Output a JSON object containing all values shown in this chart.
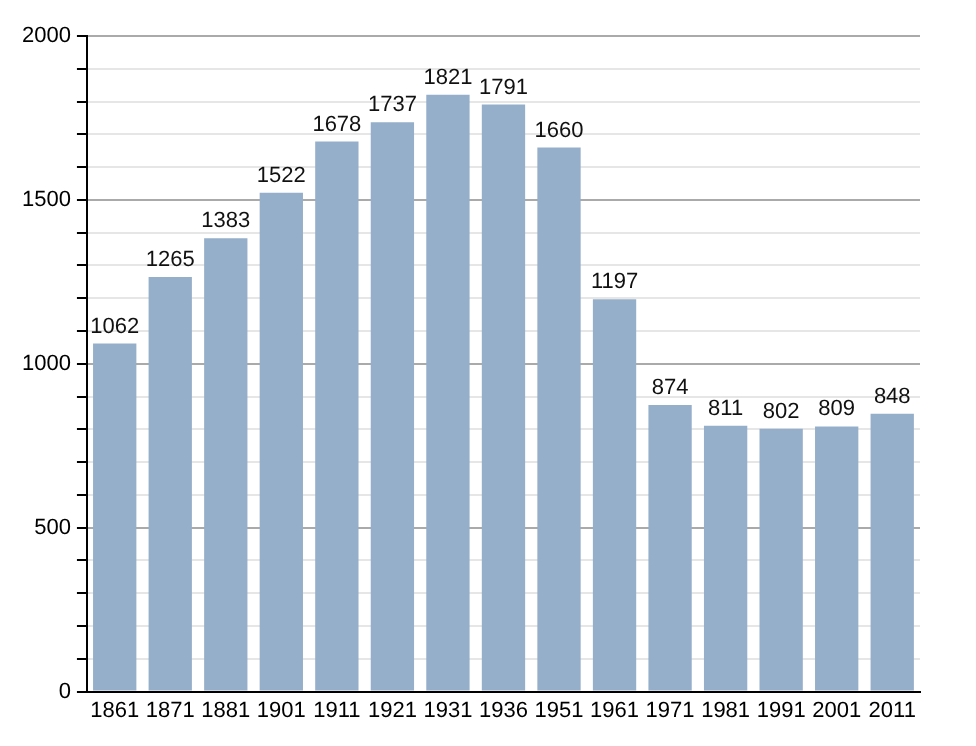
{
  "chart_data": {
    "type": "bar",
    "categories": [
      "1861",
      "1871",
      "1881",
      "1901",
      "1911",
      "1921",
      "1931",
      "1936",
      "1951",
      "1961",
      "1971",
      "1981",
      "1991",
      "2001",
      "2011"
    ],
    "values": [
      1062,
      1265,
      1383,
      1522,
      1678,
      1737,
      1821,
      1791,
      1660,
      1197,
      874,
      811,
      802,
      809,
      848
    ],
    "color": "#95afca",
    "ylim": [
      0,
      2000
    ],
    "yticks": [
      0,
      {
        "value": 100,
        "label": null
      },
      {
        "value": 200,
        "label": null
      },
      {
        "value": 300,
        "label": null
      },
      {
        "value": 400,
        "label": null
      },
      500,
      {
        "value": 600,
        "label": null
      },
      {
        "value": 700,
        "label": null
      },
      {
        "value": 800,
        "label": null
      },
      {
        "value": 900,
        "label": null
      },
      1000,
      {
        "value": 1100,
        "label": null
      },
      {
        "value": 1200,
        "label": null
      },
      {
        "value": 1300,
        "label": null
      },
      {
        "value": 1400,
        "label": null
      },
      1500,
      {
        "value": 1600,
        "label": null
      },
      {
        "value": 1700,
        "label": null
      },
      {
        "value": 1800,
        "label": null
      },
      {
        "value": 1900,
        "label": null
      },
      2000
    ],
    "grid": "y",
    "data_labels": true,
    "legend": false
  }
}
